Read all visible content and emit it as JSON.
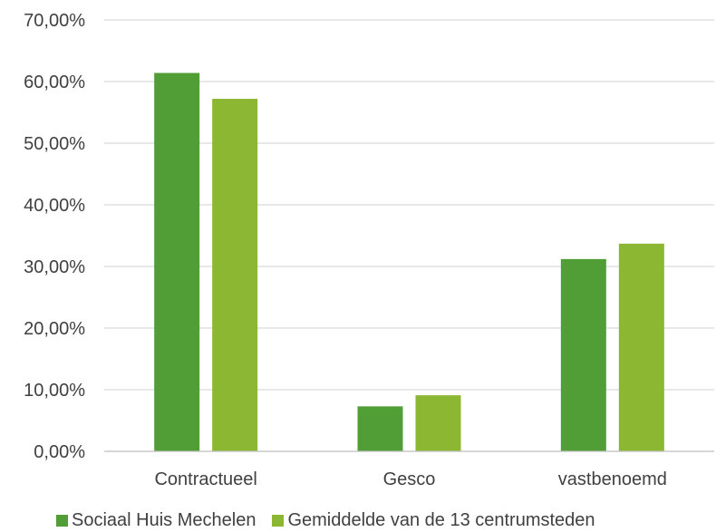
{
  "chart_data": {
    "type": "bar",
    "title": "",
    "xlabel": "",
    "ylabel": "",
    "categories": [
      "Contractueel",
      "Gesco",
      "vastbenoemd"
    ],
    "series": [
      {
        "name": "Sociaal Huis Mechelen",
        "color": "#519e37",
        "values": [
          61.4,
          7.3,
          31.2
        ]
      },
      {
        "name": "Gemiddelde van de 13 centrumsteden",
        "color": "#8bb733",
        "values": [
          57.2,
          9.1,
          33.7
        ]
      }
    ],
    "ylim": [
      0,
      70
    ],
    "yticks": [
      "0,00%",
      "10,00%",
      "20,00%",
      "30,00%",
      "40,00%",
      "50,00%",
      "60,00%",
      "70,00%"
    ],
    "grid": true,
    "legend_position": "bottom",
    "gridline_color": "#d9d9d9",
    "axis_color": "#bfbfbf"
  }
}
